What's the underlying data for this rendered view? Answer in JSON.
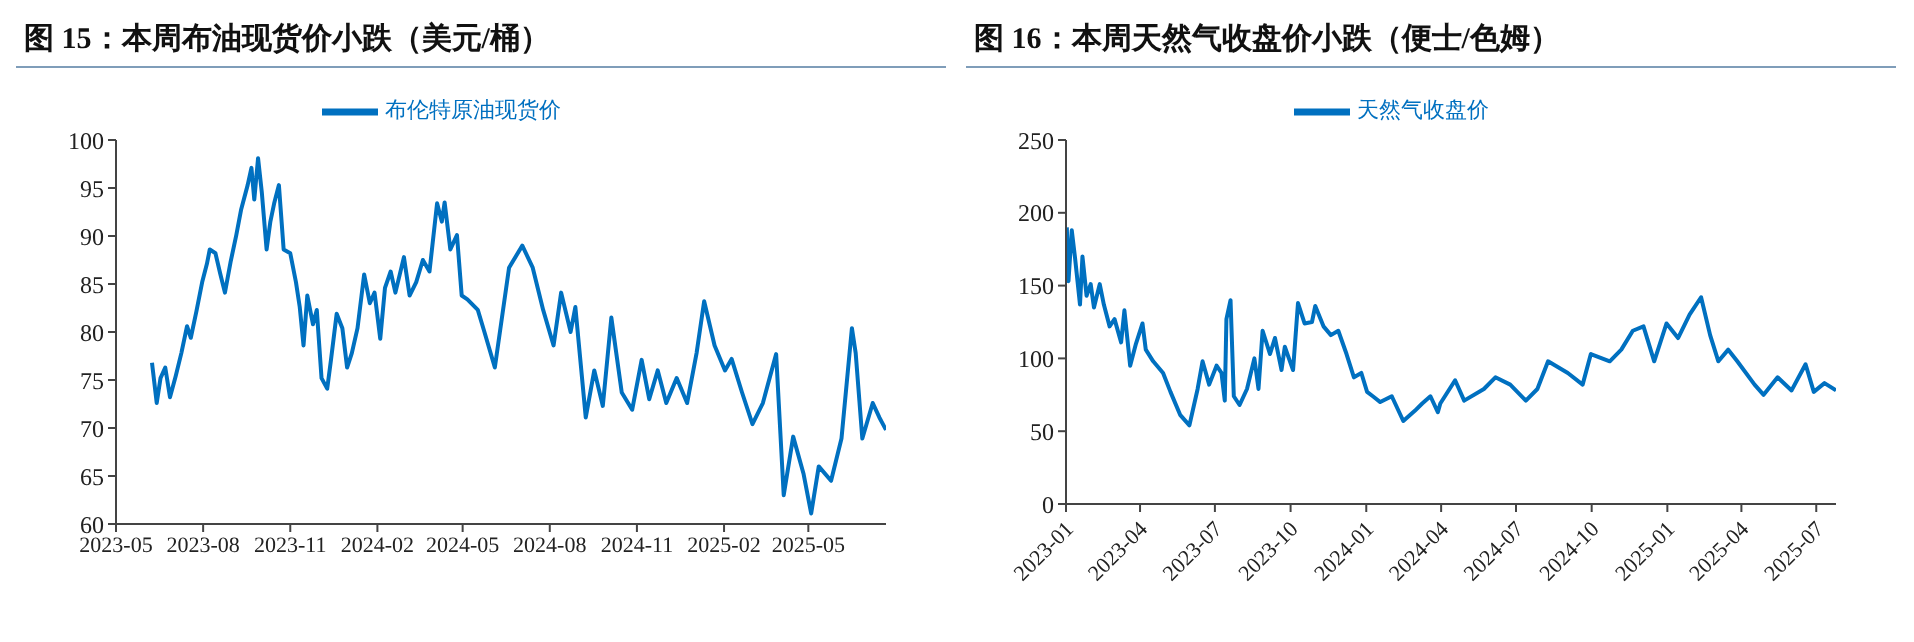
{
  "chart_data": [
    {
      "type": "line",
      "title": "图 15：本周布油现货价小跌（美元/桶）",
      "legend": "top",
      "marker": "none",
      "xlim": [
        "2023-05-01",
        "2025-07-22"
      ],
      "xticks": [
        {
          "value": "2023-05-01",
          "label": "2023-05"
        },
        {
          "value": "2023-08-01",
          "label": "2023-08"
        },
        {
          "value": "2023-11-01",
          "label": "2023-11"
        },
        {
          "value": "2024-02-01",
          "label": "2024-02"
        },
        {
          "value": "2024-05-01",
          "label": "2024-05"
        },
        {
          "value": "2024-08-01",
          "label": "2024-08"
        },
        {
          "value": "2024-11-01",
          "label": "2024-11"
        },
        {
          "value": "2025-02-01",
          "label": "2025-02"
        },
        {
          "value": "2025-05-01",
          "label": "2025-05"
        }
      ],
      "ylim": [
        60,
        100
      ],
      "yticks": [
        60,
        65,
        70,
        75,
        80,
        85,
        90,
        95,
        100
      ],
      "x": [
        "2023-06-08",
        "2023-06-13",
        "2023-06-17",
        "2023-06-22",
        "2023-06-27",
        "2023-07-03",
        "2023-07-09",
        "2023-07-15",
        "2023-07-19",
        "2023-07-25",
        "2023-07-31",
        "2023-08-05",
        "2023-08-08",
        "2023-08-14",
        "2023-08-19",
        "2023-08-24",
        "2023-08-30",
        "2023-09-05",
        "2023-09-10",
        "2023-09-17",
        "2023-09-21",
        "2023-09-24",
        "2023-09-28",
        "2023-10-02",
        "2023-10-07",
        "2023-10-11",
        "2023-10-15",
        "2023-10-20",
        "2023-10-25",
        "2023-11-01",
        "2023-11-07",
        "2023-11-11",
        "2023-11-15",
        "2023-11-19",
        "2023-11-25",
        "2023-11-29",
        "2023-12-04",
        "2023-12-10",
        "2023-12-14",
        "2023-12-20",
        "2023-12-26",
        "2023-12-31",
        "2024-01-05",
        "2024-01-11",
        "2024-01-18",
        "2024-01-24",
        "2024-01-29",
        "2024-02-04",
        "2024-02-09",
        "2024-02-15",
        "2024-02-20",
        "2024-02-29",
        "2024-03-06",
        "2024-03-13",
        "2024-03-20",
        "2024-03-27",
        "2024-04-04",
        "2024-04-09",
        "2024-04-12",
        "2024-04-18",
        "2024-04-25",
        "2024-04-30",
        "2024-05-06",
        "2024-05-17",
        "2024-05-24",
        "2024-06-04",
        "2024-06-19",
        "2024-07-03",
        "2024-07-14",
        "2024-07-25",
        "2024-08-05",
        "2024-08-13",
        "2024-08-23",
        "2024-08-28",
        "2024-09-08",
        "2024-09-17",
        "2024-09-26",
        "2024-10-05",
        "2024-10-16",
        "2024-10-27",
        "2024-11-06",
        "2024-11-14",
        "2024-11-23",
        "2024-12-02",
        "2024-12-13",
        "2024-12-24",
        "2025-01-03",
        "2025-01-11",
        "2025-01-22",
        "2025-02-02",
        "2025-02-09",
        "2025-02-20",
        "2025-03-03",
        "2025-03-14",
        "2025-03-28",
        "2025-04-05",
        "2025-04-15",
        "2025-04-26",
        "2025-05-04",
        "2025-05-12",
        "2025-05-25",
        "2025-06-05",
        "2025-06-16",
        "2025-06-20",
        "2025-06-27",
        "2025-07-08",
        "2025-07-15",
        "2025-07-22"
      ],
      "series": [
        {
          "name": "布伦特原油现货价",
          "color": "#0070c0",
          "values": [
            76.8,
            72.6,
            75.2,
            76.3,
            73.2,
            75.4,
            77.8,
            80.6,
            79.4,
            82.2,
            85.2,
            87.1,
            88.6,
            88.2,
            86.1,
            84.1,
            87.3,
            90.1,
            92.7,
            95.3,
            97.1,
            93.8,
            98.1,
            94.5,
            88.6,
            91.5,
            93.4,
            95.3,
            88.6,
            88.2,
            85.2,
            82.6,
            78.6,
            83.8,
            80.8,
            82.3,
            75.2,
            74.1,
            77.1,
            81.9,
            80.4,
            76.3,
            77.8,
            80.4,
            86.0,
            83.0,
            84.1,
            79.3,
            84.6,
            86.3,
            84.1,
            87.8,
            83.8,
            85.2,
            87.5,
            86.3,
            93.4,
            91.5,
            93.5,
            88.6,
            90.1,
            83.8,
            83.4,
            82.3,
            80.0,
            76.3,
            86.7,
            89.0,
            86.7,
            82.3,
            78.6,
            84.1,
            80.0,
            82.6,
            71.1,
            76.0,
            72.3,
            81.5,
            73.7,
            71.9,
            77.1,
            73.0,
            76.0,
            72.6,
            75.2,
            72.6,
            77.8,
            83.2,
            78.6,
            76.0,
            77.2,
            73.7,
            70.4,
            72.6,
            77.7,
            63.0,
            69.1,
            65.2,
            61.1,
            66.0,
            64.5,
            68.9,
            80.4,
            77.8,
            68.9,
            72.6,
            71.1,
            69.8
          ]
        }
      ]
    },
    {
      "type": "line",
      "title": "图 16：本周天然气收盘价小跌（便士/色姆）",
      "legend": "top",
      "marker": "none",
      "xlim": [
        "2023-01-01",
        "2025-07-25"
      ],
      "xticks": [
        {
          "value": "2023-01-01",
          "label": "2023-01"
        },
        {
          "value": "2023-04-01",
          "label": "2023-04"
        },
        {
          "value": "2023-07-01",
          "label": "2023-07"
        },
        {
          "value": "2023-10-01",
          "label": "2023-10"
        },
        {
          "value": "2024-01-01",
          "label": "2024-01"
        },
        {
          "value": "2024-04-01",
          "label": "2024-04"
        },
        {
          "value": "2024-07-01",
          "label": "2024-07"
        },
        {
          "value": "2024-10-01",
          "label": "2024-10"
        },
        {
          "value": "2025-01-01",
          "label": "2025-01"
        },
        {
          "value": "2025-04-01",
          "label": "2025-04"
        },
        {
          "value": "2025-07-01",
          "label": "2025-07"
        }
      ],
      "ylim": [
        0,
        250
      ],
      "yticks": [
        0,
        50,
        100,
        150,
        200,
        250
      ],
      "x": [
        "2023-01-02",
        "2023-01-04",
        "2023-01-08",
        "2023-01-12",
        "2023-01-18",
        "2023-01-21",
        "2023-01-26",
        "2023-01-31",
        "2023-02-04",
        "2023-02-11",
        "2023-02-16",
        "2023-02-23",
        "2023-03-01",
        "2023-03-09",
        "2023-03-13",
        "2023-03-20",
        "2023-03-27",
        "2023-04-04",
        "2023-04-08",
        "2023-04-17",
        "2023-04-29",
        "2023-05-08",
        "2023-05-20",
        "2023-05-31",
        "2023-06-10",
        "2023-06-16",
        "2023-06-24",
        "2023-07-03",
        "2023-07-09",
        "2023-07-13",
        "2023-07-15",
        "2023-07-20",
        "2023-07-24",
        "2023-07-31",
        "2023-08-09",
        "2023-08-18",
        "2023-08-23",
        "2023-08-28",
        "2023-09-06",
        "2023-09-12",
        "2023-09-20",
        "2023-09-24",
        "2023-10-04",
        "2023-10-10",
        "2023-10-18",
        "2023-10-27",
        "2023-10-31",
        "2023-11-10",
        "2023-11-19",
        "2023-11-28",
        "2023-12-08",
        "2023-12-17",
        "2023-12-26",
        "2024-01-02",
        "2024-01-09",
        "2024-01-18",
        "2024-02-01",
        "2024-02-15",
        "2024-02-29",
        "2024-03-09",
        "2024-03-19",
        "2024-03-28",
        "2024-03-31",
        "2024-04-18",
        "2024-04-29",
        "2024-05-23",
        "2024-06-06",
        "2024-06-24",
        "2024-07-13",
        "2024-07-27",
        "2024-08-09",
        "2024-09-02",
        "2024-09-20",
        "2024-09-30",
        "2024-10-23",
        "2024-11-06",
        "2024-11-20",
        "2024-12-03",
        "2024-12-16",
        "2024-12-31",
        "2025-01-14",
        "2025-01-28",
        "2025-02-11",
        "2025-02-22",
        "2025-03-04",
        "2025-03-16",
        "2025-03-27",
        "2025-04-17",
        "2025-04-28",
        "2025-05-15",
        "2025-06-01",
        "2025-06-18",
        "2025-06-28",
        "2025-07-11",
        "2025-07-25"
      ],
      "series": [
        {
          "name": "天然气收盘价",
          "color": "#0070c0",
          "values": [
            190,
            153,
            188,
            169,
            137,
            170,
            143,
            151,
            135,
            151,
            137,
            122,
            127,
            111,
            133,
            95,
            110,
            124,
            106,
            98,
            90,
            77,
            61,
            54,
            79,
            98,
            82,
            95,
            90,
            71,
            127,
            140,
            74,
            68,
            79,
            100,
            79,
            119,
            103,
            114,
            92,
            108,
            92,
            138,
            124,
            125,
            136,
            122,
            116,
            119,
            103,
            87,
            90,
            77,
            74,
            70,
            74,
            57,
            64,
            69,
            74,
            63,
            69,
            85,
            71,
            79,
            87,
            82,
            71,
            79,
            98,
            90,
            82,
            103,
            98,
            106,
            119,
            122,
            98,
            124,
            114,
            130,
            142,
            116,
            98,
            106,
            98,
            82,
            75,
            87,
            78,
            96,
            77,
            83,
            78
          ]
        }
      ]
    }
  ]
}
